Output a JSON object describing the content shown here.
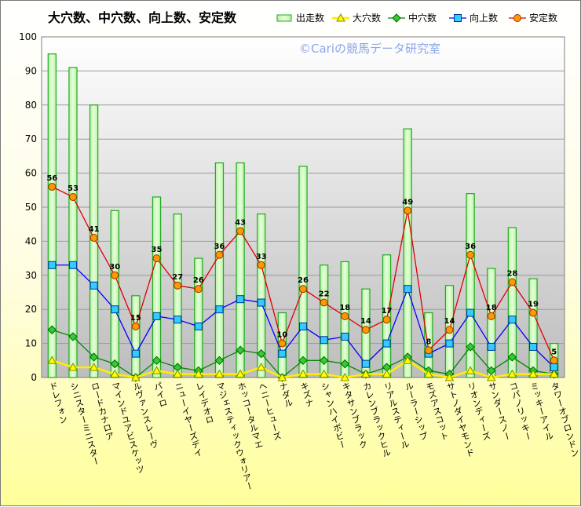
{
  "chart_data": {
    "type": "bar",
    "title": "大穴数、中穴数、向上数、安定数",
    "watermark": "©Cariの競馬データ研究室",
    "ylim": [
      0,
      100
    ],
    "yticks": [
      0,
      10,
      20,
      30,
      40,
      50,
      60,
      70,
      80,
      90,
      100
    ],
    "grid": true,
    "legend_position": "top-right",
    "categories": [
      "ドレフォン",
      "シニスターミニスター",
      "ロードカナロア",
      "マインドユアビスケッツ",
      "ルヴァンスレーヴ",
      "パイロ",
      "ニューイヤーズデイ",
      "レイデオロ",
      "マジェスティックウォリアー",
      "ホッコータルマエ",
      "ヘニーヒューズ",
      "ナダル",
      "キズナ",
      "シャンハイボビー",
      "キタサンブラック",
      "カレンブラックヒル",
      "リアルスティール",
      "ルーラーシップ",
      "モズアスコット",
      "サトノダイヤモンド",
      "リオンディーズ",
      "サンダースノー",
      "コパノリッキー",
      "ミッキーアイル",
      "タワーオブロンドン"
    ],
    "series": [
      {
        "name": "出走数",
        "kind": "bar",
        "color": "#33cc33",
        "values": [
          95,
          91,
          80,
          49,
          24,
          53,
          48,
          35,
          63,
          63,
          48,
          19,
          62,
          33,
          34,
          26,
          36,
          73,
          19,
          27,
          54,
          32,
          44,
          29,
          10
        ]
      },
      {
        "name": "大穴数",
        "kind": "line",
        "color": "#ffee00",
        "values": [
          5,
          3,
          3,
          1,
          0,
          2,
          1,
          1,
          1,
          1,
          3,
          0,
          1,
          1,
          0,
          1,
          1,
          5,
          1,
          0,
          2,
          0,
          1,
          1,
          1
        ]
      },
      {
        "name": "中穴数",
        "kind": "line",
        "color": "#008800",
        "values": [
          14,
          12,
          6,
          4,
          0,
          5,
          3,
          2,
          5,
          8,
          7,
          0,
          5,
          5,
          4,
          1,
          3,
          6,
          2,
          1,
          9,
          2,
          6,
          2,
          1
        ]
      },
      {
        "name": "向上数",
        "kind": "line",
        "color": "#0000ff",
        "values": [
          33,
          33,
          27,
          20,
          7,
          18,
          17,
          15,
          20,
          23,
          22,
          7,
          15,
          11,
          12,
          4,
          10,
          26,
          7,
          10,
          19,
          9,
          17,
          9,
          3
        ]
      },
      {
        "name": "安定数",
        "kind": "line",
        "color": "#dd0000",
        "values": [
          56,
          53,
          41,
          30,
          15,
          35,
          27,
          26,
          36,
          43,
          33,
          10,
          26,
          22,
          18,
          14,
          17,
          49,
          8,
          14,
          36,
          18,
          28,
          19,
          5
        ]
      }
    ]
  }
}
